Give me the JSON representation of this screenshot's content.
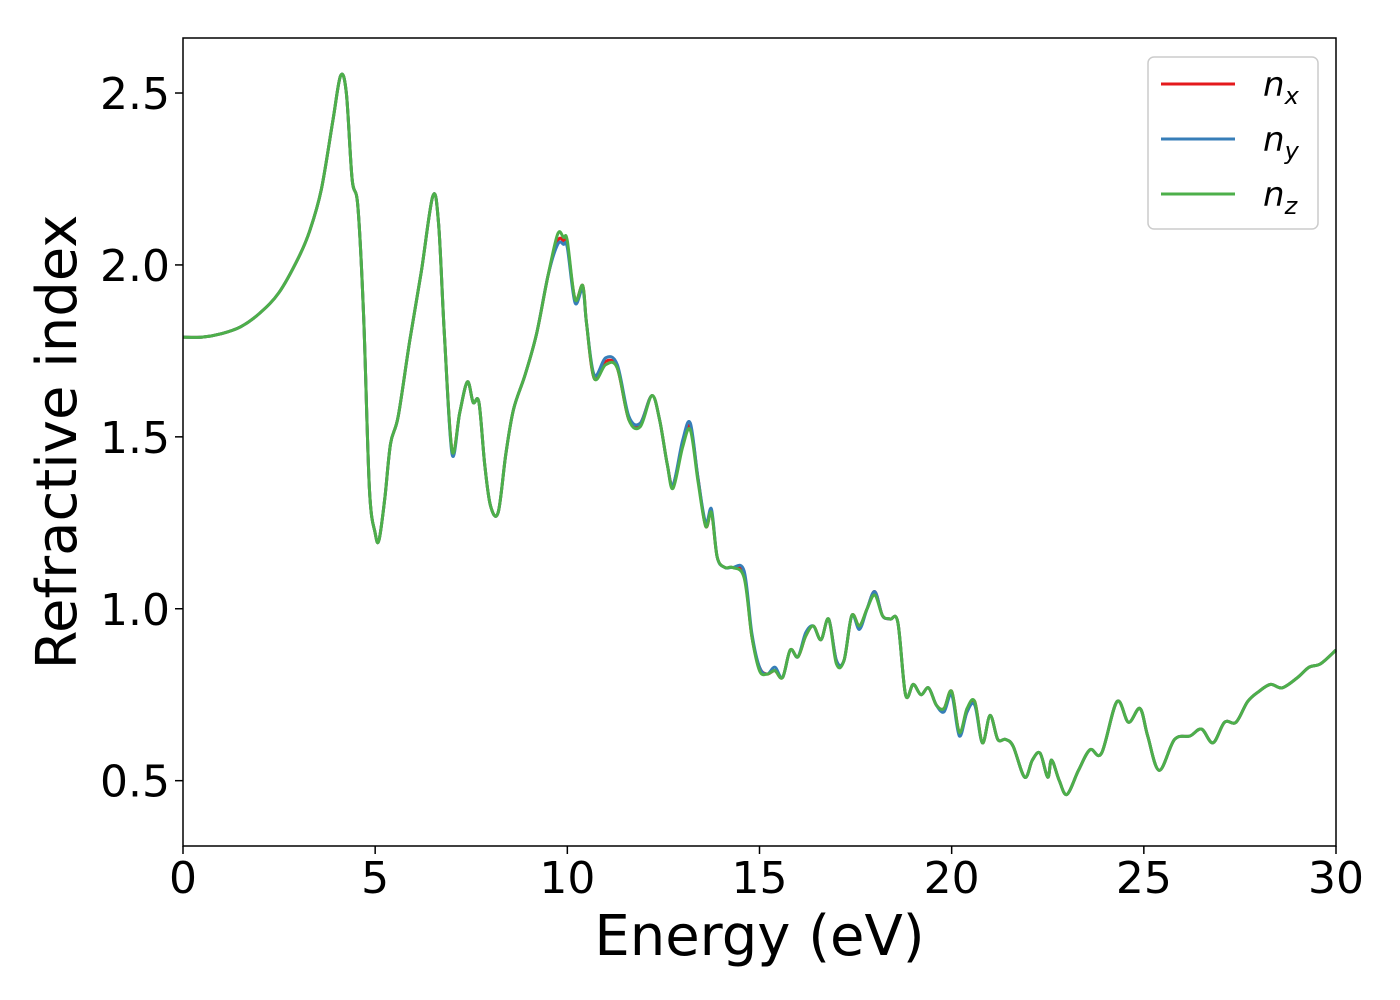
{
  "chart_data": {
    "type": "line",
    "xlabel": "Energy (eV)",
    "ylabel": "Refractive index",
    "xlim": [
      0,
      30
    ],
    "ylim": [
      0.31,
      2.66
    ],
    "xticks": [
      0,
      5,
      10,
      15,
      20,
      25,
      30
    ],
    "xtick_labels": [
      "0",
      "5",
      "10",
      "15",
      "20",
      "25",
      "30"
    ],
    "yticks": [
      0.5,
      1.0,
      1.5,
      2.0,
      2.5
    ],
    "ytick_labels": [
      "0.5",
      "1.0",
      "1.5",
      "2.0",
      "2.5"
    ],
    "grid": false,
    "legend_position": "top-right",
    "x": [
      0,
      0.5,
      1,
      1.5,
      2,
      2.5,
      3,
      3.3,
      3.6,
      3.9,
      4.1,
      4.25,
      4.4,
      4.55,
      4.7,
      4.85,
      5.0,
      5.1,
      5.25,
      5.4,
      5.6,
      5.9,
      6.2,
      6.5,
      6.65,
      6.8,
      7.0,
      7.2,
      7.4,
      7.55,
      7.7,
      7.85,
      8.0,
      8.2,
      8.4,
      8.6,
      8.9,
      9.2,
      9.5,
      9.75,
      9.9,
      10.0,
      10.2,
      10.4,
      10.5,
      10.7,
      11.0,
      11.3,
      11.6,
      11.9,
      12.2,
      12.4,
      12.6,
      12.75,
      13.0,
      13.2,
      13.4,
      13.6,
      13.75,
      13.9,
      14.1,
      14.3,
      14.6,
      14.8,
      15.0,
      15.2,
      15.4,
      15.6,
      15.8,
      16.0,
      16.2,
      16.4,
      16.6,
      16.8,
      17.0,
      17.2,
      17.4,
      17.6,
      17.8,
      18.0,
      18.2,
      18.4,
      18.6,
      18.8,
      19.0,
      19.2,
      19.4,
      19.6,
      19.8,
      20.0,
      20.2,
      20.4,
      20.6,
      20.8,
      21.0,
      21.2,
      21.4,
      21.6,
      21.9,
      22.1,
      22.3,
      22.5,
      22.6,
      22.8,
      23.0,
      23.3,
      23.6,
      23.9,
      24.3,
      24.6,
      24.9,
      25.1,
      25.4,
      25.8,
      26.2,
      26.5,
      26.8,
      27.1,
      27.4,
      27.7,
      28.0,
      28.3,
      28.6,
      29.0,
      29.3,
      29.6,
      30.0
    ],
    "series": [
      {
        "name": "x",
        "color": "#e41a1c",
        "values": [
          1.79,
          1.79,
          1.8,
          1.82,
          1.86,
          1.92,
          2.02,
          2.1,
          2.22,
          2.42,
          2.55,
          2.5,
          2.25,
          2.17,
          1.85,
          1.35,
          1.22,
          1.2,
          1.32,
          1.48,
          1.56,
          1.78,
          1.98,
          2.2,
          2.12,
          1.8,
          1.46,
          1.57,
          1.66,
          1.6,
          1.6,
          1.42,
          1.3,
          1.28,
          1.45,
          1.58,
          1.68,
          1.8,
          1.97,
          2.07,
          2.07,
          2.06,
          1.9,
          1.94,
          1.83,
          1.67,
          1.72,
          1.7,
          1.55,
          1.54,
          1.62,
          1.55,
          1.42,
          1.36,
          1.48,
          1.53,
          1.38,
          1.24,
          1.28,
          1.15,
          1.12,
          1.12,
          1.1,
          0.92,
          0.83,
          0.81,
          0.82,
          0.8,
          0.88,
          0.86,
          0.92,
          0.95,
          0.91,
          0.97,
          0.85,
          0.85,
          0.98,
          0.95,
          1.0,
          1.05,
          0.98,
          0.97,
          0.96,
          0.75,
          0.78,
          0.75,
          0.77,
          0.72,
          0.71,
          0.76,
          0.64,
          0.7,
          0.73,
          0.61,
          0.69,
          0.62,
          0.62,
          0.6,
          0.51,
          0.56,
          0.58,
          0.51,
          0.56,
          0.5,
          0.46,
          0.53,
          0.59,
          0.58,
          0.73,
          0.67,
          0.71,
          0.63,
          0.53,
          0.62,
          0.63,
          0.65,
          0.61,
          0.67,
          0.67,
          0.73,
          0.76,
          0.78,
          0.77,
          0.8,
          0.83,
          0.84,
          0.88
        ]
      },
      {
        "name": "y",
        "color": "#377eb8",
        "values": [
          1.79,
          1.79,
          1.8,
          1.82,
          1.86,
          1.92,
          2.02,
          2.1,
          2.22,
          2.42,
          2.55,
          2.5,
          2.25,
          2.17,
          1.85,
          1.35,
          1.22,
          1.2,
          1.32,
          1.48,
          1.56,
          1.78,
          1.98,
          2.2,
          2.12,
          1.8,
          1.45,
          1.57,
          1.66,
          1.6,
          1.6,
          1.42,
          1.3,
          1.28,
          1.45,
          1.58,
          1.68,
          1.8,
          1.97,
          2.06,
          2.06,
          2.05,
          1.89,
          1.93,
          1.83,
          1.68,
          1.73,
          1.71,
          1.56,
          1.54,
          1.62,
          1.55,
          1.42,
          1.36,
          1.49,
          1.54,
          1.38,
          1.25,
          1.29,
          1.15,
          1.12,
          1.12,
          1.11,
          0.93,
          0.83,
          0.81,
          0.83,
          0.8,
          0.88,
          0.86,
          0.93,
          0.95,
          0.91,
          0.97,
          0.85,
          0.85,
          0.98,
          0.94,
          1.0,
          1.05,
          0.98,
          0.97,
          0.96,
          0.75,
          0.78,
          0.75,
          0.77,
          0.72,
          0.7,
          0.75,
          0.63,
          0.7,
          0.72,
          0.61,
          0.69,
          0.62,
          0.62,
          0.6,
          0.51,
          0.56,
          0.58,
          0.51,
          0.56,
          0.5,
          0.46,
          0.53,
          0.59,
          0.58,
          0.73,
          0.67,
          0.71,
          0.63,
          0.53,
          0.62,
          0.63,
          0.65,
          0.61,
          0.67,
          0.67,
          0.73,
          0.76,
          0.78,
          0.77,
          0.8,
          0.83,
          0.84,
          0.88
        ]
      },
      {
        "name": "z",
        "color": "#4daf4a",
        "values": [
          1.79,
          1.79,
          1.8,
          1.82,
          1.86,
          1.92,
          2.02,
          2.1,
          2.22,
          2.42,
          2.55,
          2.5,
          2.25,
          2.17,
          1.85,
          1.35,
          1.22,
          1.2,
          1.32,
          1.48,
          1.56,
          1.78,
          1.98,
          2.2,
          2.12,
          1.8,
          1.46,
          1.57,
          1.66,
          1.6,
          1.6,
          1.42,
          1.3,
          1.28,
          1.45,
          1.58,
          1.68,
          1.8,
          1.97,
          2.09,
          2.08,
          2.07,
          1.9,
          1.94,
          1.83,
          1.67,
          1.71,
          1.7,
          1.55,
          1.53,
          1.62,
          1.55,
          1.42,
          1.35,
          1.47,
          1.52,
          1.37,
          1.24,
          1.28,
          1.15,
          1.12,
          1.12,
          1.09,
          0.92,
          0.82,
          0.81,
          0.82,
          0.8,
          0.88,
          0.86,
          0.92,
          0.95,
          0.91,
          0.97,
          0.84,
          0.85,
          0.98,
          0.95,
          1.0,
          1.04,
          0.98,
          0.97,
          0.96,
          0.75,
          0.78,
          0.75,
          0.77,
          0.72,
          0.71,
          0.76,
          0.64,
          0.71,
          0.73,
          0.61,
          0.69,
          0.62,
          0.62,
          0.6,
          0.51,
          0.56,
          0.58,
          0.51,
          0.56,
          0.5,
          0.46,
          0.53,
          0.59,
          0.58,
          0.73,
          0.67,
          0.71,
          0.63,
          0.53,
          0.62,
          0.63,
          0.65,
          0.61,
          0.67,
          0.67,
          0.73,
          0.76,
          0.78,
          0.77,
          0.8,
          0.83,
          0.84,
          0.88
        ]
      }
    ]
  },
  "legend": {
    "entries": [
      {
        "symbol": "n",
        "subscript": "x"
      },
      {
        "symbol": "n",
        "subscript": "y"
      },
      {
        "symbol": "n",
        "subscript": "z"
      }
    ]
  }
}
